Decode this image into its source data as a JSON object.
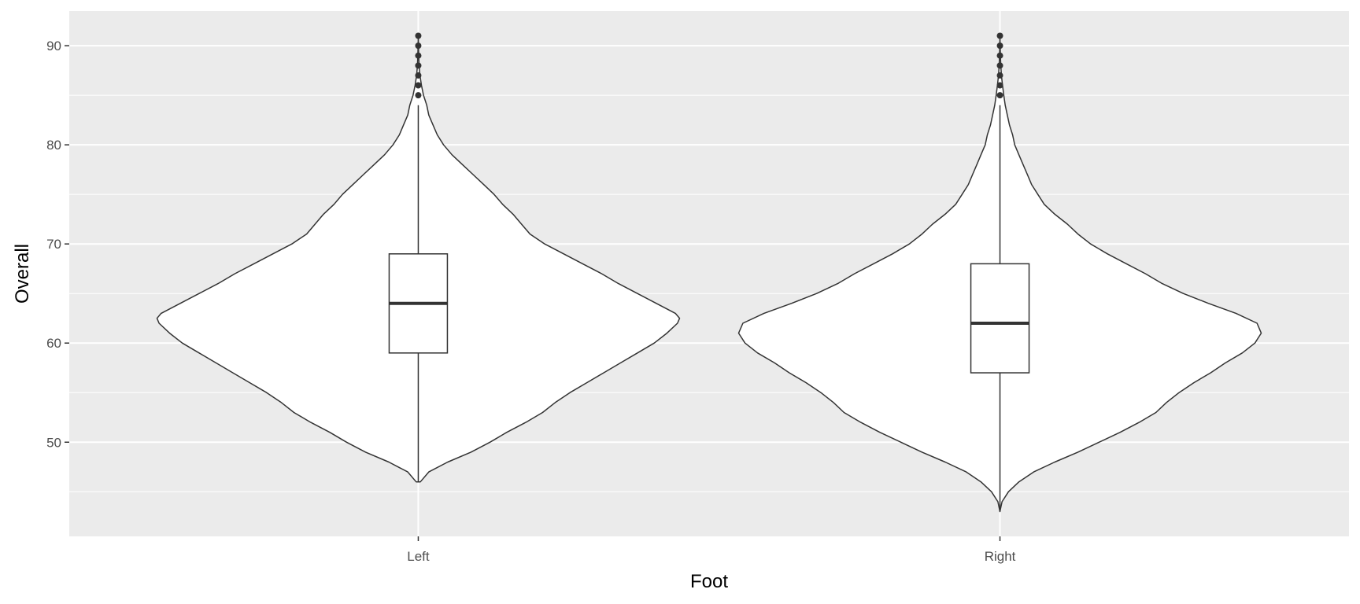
{
  "chart_data": {
    "type": "violin",
    "title": "",
    "xlabel": "Foot",
    "ylabel": "Overall",
    "categories": [
      "Left",
      "Right"
    ],
    "ylim": [
      40.5,
      93.5
    ],
    "y_ticks": [
      50,
      60,
      70,
      80,
      90
    ],
    "grid": true,
    "legend": "none",
    "colors": {
      "panel_background": "#ebebeb",
      "grid": "#ffffff",
      "violin_fill": "#ffffff",
      "outline": "#333333",
      "outlier": "#333333"
    },
    "series": [
      {
        "category": "Left",
        "boxplot": {
          "whisker_low": 46,
          "q1": 59,
          "median": 64,
          "q3": 69,
          "whisker_high": 84
        },
        "outliers": [
          85,
          86,
          87,
          88,
          89,
          90,
          91
        ],
        "density": [
          [
            46,
            0.01
          ],
          [
            47,
            0.05
          ],
          [
            48,
            0.14
          ],
          [
            49,
            0.25
          ],
          [
            50,
            0.34
          ],
          [
            51,
            0.42
          ],
          [
            52,
            0.51
          ],
          [
            53,
            0.59
          ],
          [
            54,
            0.65
          ],
          [
            55,
            0.72
          ],
          [
            56,
            0.8
          ],
          [
            57,
            0.88
          ],
          [
            58,
            0.96
          ],
          [
            59,
            1.04
          ],
          [
            60,
            1.12
          ],
          [
            61,
            1.18
          ],
          [
            62,
            1.23
          ],
          [
            62.5,
            1.24
          ],
          [
            63,
            1.22
          ],
          [
            64,
            1.13
          ],
          [
            65,
            1.04
          ],
          [
            66,
            0.95
          ],
          [
            67,
            0.87
          ],
          [
            68,
            0.78
          ],
          [
            69,
            0.69
          ],
          [
            70,
            0.6
          ],
          [
            71,
            0.53
          ],
          [
            72,
            0.49
          ],
          [
            73,
            0.45
          ],
          [
            74,
            0.4
          ],
          [
            75,
            0.36
          ],
          [
            76,
            0.31
          ],
          [
            77,
            0.26
          ],
          [
            78,
            0.21
          ],
          [
            79,
            0.16
          ],
          [
            80,
            0.12
          ],
          [
            81,
            0.09
          ],
          [
            82,
            0.07
          ],
          [
            83,
            0.05
          ],
          [
            84,
            0.04
          ],
          [
            85,
            0.025
          ],
          [
            86,
            0.015
          ],
          [
            87,
            0.008
          ],
          [
            88,
            0.004
          ],
          [
            89,
            0.002
          ],
          [
            90,
            0.001
          ],
          [
            91,
            0.0
          ]
        ]
      },
      {
        "category": "Right",
        "boxplot": {
          "whisker_low": 43,
          "q1": 57,
          "median": 62,
          "q3": 68,
          "whisker_high": 84
        },
        "outliers": [
          85,
          86,
          87,
          88,
          89,
          90,
          91
        ],
        "density": [
          [
            43,
            0.0
          ],
          [
            44,
            0.01
          ],
          [
            45,
            0.04
          ],
          [
            46,
            0.09
          ],
          [
            47,
            0.16
          ],
          [
            48,
            0.26
          ],
          [
            49,
            0.37
          ],
          [
            50,
            0.47
          ],
          [
            51,
            0.57
          ],
          [
            52,
            0.66
          ],
          [
            53,
            0.74
          ],
          [
            54,
            0.79
          ],
          [
            55,
            0.85
          ],
          [
            56,
            0.92
          ],
          [
            57,
            1.0
          ],
          [
            58,
            1.07
          ],
          [
            59,
            1.15
          ],
          [
            60,
            1.21
          ],
          [
            61,
            1.24
          ],
          [
            62,
            1.22
          ],
          [
            63,
            1.12
          ],
          [
            64,
            0.99
          ],
          [
            65,
            0.87
          ],
          [
            66,
            0.77
          ],
          [
            67,
            0.69
          ],
          [
            68,
            0.6
          ],
          [
            69,
            0.51
          ],
          [
            70,
            0.43
          ],
          [
            71,
            0.37
          ],
          [
            72,
            0.32
          ],
          [
            73,
            0.26
          ],
          [
            74,
            0.21
          ],
          [
            75,
            0.18
          ],
          [
            76,
            0.15
          ],
          [
            77,
            0.13
          ],
          [
            78,
            0.11
          ],
          [
            79,
            0.09
          ],
          [
            80,
            0.07
          ],
          [
            81,
            0.06
          ],
          [
            82,
            0.045
          ],
          [
            83,
            0.035
          ],
          [
            84,
            0.025
          ],
          [
            85,
            0.018
          ],
          [
            86,
            0.012
          ],
          [
            87,
            0.007
          ],
          [
            88,
            0.004
          ],
          [
            89,
            0.002
          ],
          [
            90,
            0.001
          ],
          [
            91,
            0.0
          ]
        ]
      }
    ]
  }
}
